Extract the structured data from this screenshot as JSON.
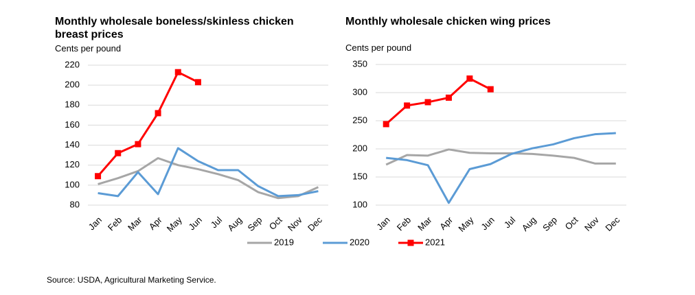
{
  "chart_data": [
    {
      "type": "line",
      "title": "Monthly wholesale boneless/skinless chicken breast prices",
      "ylabel": "Cents per pound",
      "categories": [
        "Jan",
        "Feb",
        "Mar",
        "Apr",
        "May",
        "Jun",
        "Jul",
        "Aug",
        "Sep",
        "Oct",
        "Nov",
        "Dec"
      ],
      "ylim": [
        80,
        220
      ],
      "yticks": [
        80,
        100,
        120,
        140,
        160,
        180,
        200,
        220
      ],
      "grid": true,
      "series": [
        {
          "name": "2019",
          "color": "#a6a6a6",
          "values": [
            101,
            107,
            114,
            127,
            120,
            116,
            111,
            105,
            93,
            87,
            89,
            98
          ]
        },
        {
          "name": "2020",
          "color": "#5b9bd5",
          "values": [
            92,
            89,
            113,
            91,
            137,
            124,
            115,
            115,
            99,
            89,
            90,
            94
          ]
        },
        {
          "name": "2021",
          "color": "#ff0000",
          "marker": "square",
          "values": [
            109,
            132,
            141,
            172,
            213,
            203,
            null,
            null,
            null,
            null,
            null,
            null
          ]
        }
      ]
    },
    {
      "type": "line",
      "title": "Monthly wholesale chicken wing prices",
      "ylabel": "Cents per pound",
      "categories": [
        "Jan",
        "Feb",
        "Mar",
        "Apr",
        "May",
        "Jun",
        "Jul",
        "Aug",
        "Sep",
        "Oct",
        "Nov",
        "Dec"
      ],
      "ylim": [
        100,
        350
      ],
      "yticks": [
        100,
        150,
        200,
        250,
        300,
        350
      ],
      "grid": true,
      "series": [
        {
          "name": "2019",
          "color": "#a6a6a6",
          "values": [
            172,
            189,
            188,
            199,
            193,
            192,
            192,
            191,
            188,
            184,
            174,
            174
          ]
        },
        {
          "name": "2020",
          "color": "#5b9bd5",
          "values": [
            184,
            180,
            171,
            104,
            164,
            173,
            191,
            201,
            208,
            219,
            226,
            228
          ]
        },
        {
          "name": "2021",
          "color": "#ff0000",
          "marker": "square",
          "values": [
            244,
            277,
            283,
            291,
            325,
            306,
            null,
            null,
            null,
            null,
            null,
            null
          ]
        }
      ]
    }
  ],
  "source": "Source: USDA, Agricultural Marketing Service."
}
